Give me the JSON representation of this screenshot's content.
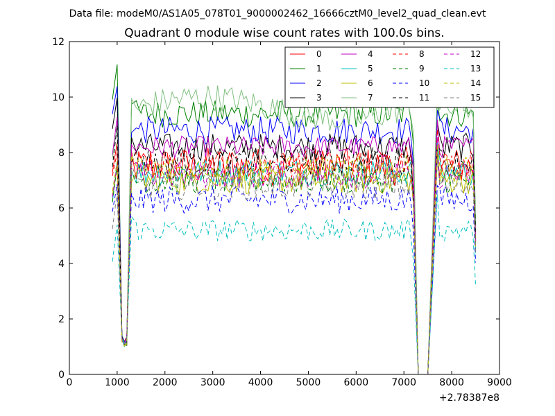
{
  "chart_data": {
    "type": "line",
    "suptitle": "Data file: modeM0/AS1A05_078T01_9000002462_16666cztM0_level2_quad_clean.evt",
    "title": "Quadrant 0 module wise count rates with 100.0s bins.",
    "xlabel": "",
    "ylabel": "",
    "x_offset_label": "+2.78387e8",
    "xlim": [
      0,
      9000
    ],
    "ylim": [
      0,
      12
    ],
    "xticks": [
      0,
      1000,
      2000,
      3000,
      4000,
      5000,
      6000,
      7000,
      8000,
      9000
    ],
    "yticks": [
      0,
      2,
      4,
      6,
      8,
      10,
      12
    ],
    "grid": false,
    "legend_position": "top-right",
    "legend_columns": 4,
    "time_segments": [
      [
        900,
        1200
      ],
      [
        1300,
        7200
      ],
      [
        7300,
        7500
      ],
      [
        7700,
        8500
      ]
    ],
    "series": [
      {
        "name": "0",
        "color": "#ff0000",
        "dash": "solid",
        "level": 7.5,
        "spread": 0.7,
        "start": 8.4,
        "end": 5.2
      },
      {
        "name": "1",
        "color": "#008000",
        "dash": "solid",
        "level": 9.4,
        "spread": 0.5,
        "start": 11.2,
        "end": 5.6
      },
      {
        "name": "2",
        "color": "#0000ff",
        "dash": "solid",
        "level": 8.8,
        "spread": 0.5,
        "start": 10.4,
        "end": 4.2
      },
      {
        "name": "3",
        "color": "#000000",
        "dash": "solid",
        "level": 8.2,
        "spread": 0.5,
        "start": 9.9,
        "end": 5.0
      },
      {
        "name": "4",
        "color": "#bf00bf",
        "dash": "solid",
        "level": 8.2,
        "spread": 0.4,
        "start": 9.3,
        "end": 4.8
      },
      {
        "name": "5",
        "color": "#00bfbf",
        "dash": "solid",
        "level": 7.3,
        "spread": 0.5,
        "start": 7.7,
        "end": 4.5
      },
      {
        "name": "6",
        "color": "#bfbf00",
        "dash": "solid",
        "level": 7.0,
        "spread": 0.5,
        "start": 7.4,
        "end": 4.4
      },
      {
        "name": "7",
        "color": "#7fbf7f",
        "dash": "solid",
        "level": 9.6,
        "spread": 0.5,
        "start": 9.0,
        "end": 4.9
      },
      {
        "name": "8",
        "color": "#ff0000",
        "dash": "dashed",
        "level": 7.6,
        "spread": 0.5,
        "start": 8.1,
        "end": 4.8
      },
      {
        "name": "9",
        "color": "#008000",
        "dash": "dashed",
        "level": 7.0,
        "spread": 0.5,
        "start": 7.6,
        "end": 4.6
      },
      {
        "name": "10",
        "color": "#0000ff",
        "dash": "dashed",
        "level": 6.3,
        "spread": 0.5,
        "start": 6.9,
        "end": 4.3
      },
      {
        "name": "11",
        "color": "#000000",
        "dash": "dashed",
        "level": 7.7,
        "spread": 0.5,
        "start": 8.9,
        "end": 4.9
      },
      {
        "name": "12",
        "color": "#bf00bf",
        "dash": "dashed",
        "level": 7.2,
        "spread": 0.5,
        "start": 7.5,
        "end": 4.6
      },
      {
        "name": "13",
        "color": "#00bfbf",
        "dash": "dashed",
        "level": 5.2,
        "spread": 0.4,
        "start": 5.4,
        "end": 3.0
      },
      {
        "name": "14",
        "color": "#bfbf00",
        "dash": "dashed",
        "level": 7.4,
        "spread": 0.5,
        "start": 7.6,
        "end": 4.5
      },
      {
        "name": "15",
        "color": "#7f7f7f",
        "dash": "dashed",
        "level": 6.8,
        "spread": 0.5,
        "start": 6.5,
        "end": 4.7
      }
    ]
  }
}
